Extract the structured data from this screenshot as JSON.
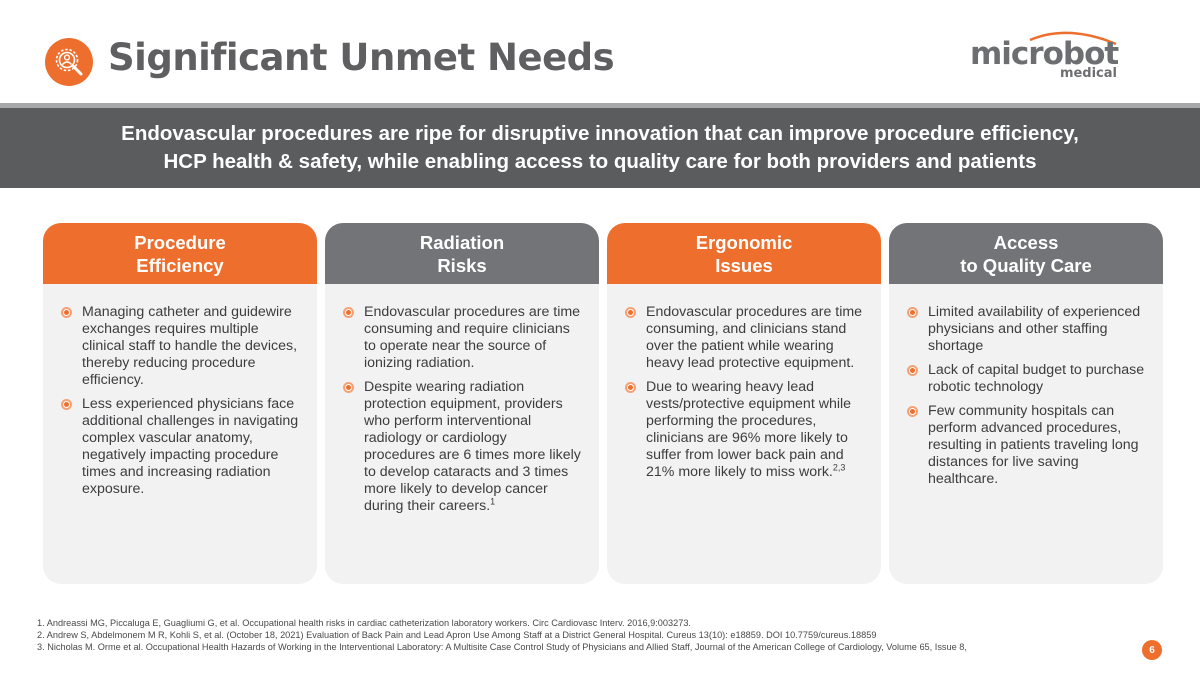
{
  "header": {
    "title": "Significant Unmet Needs",
    "icon": "user-search-icon",
    "logo": {
      "word": "microbot",
      "sub": "medical"
    }
  },
  "banner": {
    "line1": "Endovascular procedures are ripe for disruptive innovation that can improve procedure efficiency,",
    "line2": "HCP health & safety, while enabling access to quality care for both providers and patients"
  },
  "cards": [
    {
      "title_line1": "Procedure",
      "title_line2": "Efficiency",
      "color": "#ee6f2d",
      "bullets": [
        {
          "text": "Managing catheter and guidewire exchanges requires multiple clinical staff to handle the devices, thereby reducing procedure efficiency.",
          "ref": ""
        },
        {
          "text": "Less experienced physicians face additional challenges in navigating complex vascular anatomy, negatively impacting procedure times and increasing radiation exposure.",
          "ref": ""
        }
      ]
    },
    {
      "title_line1": "Radiation",
      "title_line2": "Risks",
      "color": "#737477",
      "bullets": [
        {
          "text": "Endovascular procedures are time consuming and require clinicians to operate near the source of ionizing radiation.",
          "ref": ""
        },
        {
          "text": "Despite wearing radiation protection equipment, providers who perform interventional radiology or cardiology procedures are 6 times more likely to develop cataracts and 3 times more likely to develop cancer during their careers.",
          "ref": "1"
        }
      ]
    },
    {
      "title_line1": "Ergonomic",
      "title_line2": "Issues",
      "color": "#ee6f2d",
      "bullets": [
        {
          "text": "Endovascular procedures are time consuming, and clinicians stand over the patient while wearing heavy lead protective equipment.",
          "ref": ""
        },
        {
          "text": "Due to wearing heavy lead vests/protective equipment while performing the procedures, clinicians are 96% more likely to suffer from lower back pain and 21% more likely to miss work.",
          "ref": "2,3"
        }
      ]
    },
    {
      "title_line1": "Access",
      "title_line2": "to Quality Care",
      "color": "#737477",
      "bullets": [
        {
          "text": "Limited availability of experienced physicians and other staffing shortage",
          "ref": ""
        },
        {
          "text": "Lack of capital budget to purchase robotic technology",
          "ref": ""
        },
        {
          "text": "Few community hospitals can perform advanced procedures, resulting in patients traveling long distances for live saving healthcare.",
          "ref": ""
        }
      ]
    }
  ],
  "footnotes": [
    "1. Andreassi MG, Piccaluga E, Guagliumi G, et al. Occupational health risks in cardiac catheterization laboratory workers. Circ Cardiovasc Interv. 2016,9:003273.",
    "2. Andrew S, Abdelmonem M R, Kohli S, et al. (October 18, 2021) Evaluation of Back Pain and Lead Apron Use Among Staff at a District General Hospital.  Cureus 13(10): e18859. DOI 10.7759/cureus.18859",
    "3. Nicholas M. Orme et al. Occupational Health Hazards of Working in the Interventional Laboratory: A Multisite Case Control Study of Physicians and Allied Staff, Journal of the American College of Cardiology, Volume 65, Issue 8,"
  ],
  "page_number": "6"
}
